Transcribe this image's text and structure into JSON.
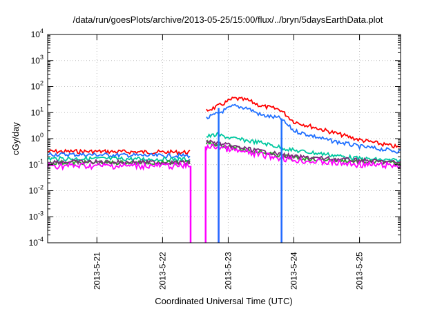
{
  "chart_data": {
    "type": "line",
    "title": "/data/run/goesPlots/archive/2013-05-25/15:00/flux/../bryn/5daysEarthData.plot",
    "xlabel": "Coordinated Universal Time (UTC)",
    "ylabel": "cGy/day",
    "yscale": "log",
    "ylim": [
      0.0001,
      10000
    ],
    "xlim": [
      "2013-05-20 06:00",
      "2013-05-25 15:00"
    ],
    "x_ticks": [
      "2013-5-21",
      "2013-5-22",
      "2013-5-23",
      "2013-5-24",
      "2013-5-25"
    ],
    "y_ticks": [
      {
        "base": "10",
        "exp": "-4"
      },
      {
        "base": "10",
        "exp": "-3"
      },
      {
        "base": "10",
        "exp": "-2"
      },
      {
        "base": "10",
        "exp": "-1"
      },
      {
        "base": "10",
        "exp": "0"
      },
      {
        "base": "10",
        "exp": "1"
      },
      {
        "base": "10",
        "exp": "2"
      },
      {
        "base": "10",
        "exp": "3"
      },
      {
        "base": "10",
        "exp": "4"
      }
    ],
    "grid": true,
    "series": [
      {
        "color": "#ff0000",
        "x": [
          "2013-05-20 06:00",
          "2013-05-21 00:00",
          "2013-05-22 00:00",
          "2013-05-22 10:00",
          "2013-05-22 10:30",
          "2013-05-22 15:30",
          "2013-05-22 16:00",
          "2013-05-22 20:00",
          "2013-05-23 02:00",
          "2013-05-23 07:00",
          "2013-05-23 12:00",
          "2013-05-23 19:00",
          "2013-05-24 00:00",
          "2013-05-24 12:00",
          "2013-05-25 00:00",
          "2013-05-25 15:00"
        ],
        "y": [
          0.32,
          0.32,
          0.3,
          0.3,
          null,
          null,
          12,
          17,
          35,
          30,
          18,
          13,
          4.5,
          2.0,
          0.9,
          0.45
        ]
      },
      {
        "color": "#1f6fff",
        "x": [
          "2013-05-20 06:00",
          "2013-05-21 00:00",
          "2013-05-22 00:00",
          "2013-05-22 10:00",
          "2013-05-22 10:30",
          "2013-05-22 15:30",
          "2013-05-22 16:00",
          "2013-05-22 20:00",
          "2013-05-23 02:00",
          "2013-05-23 07:00",
          "2013-05-23 12:00",
          "2013-05-23 19:00",
          "2013-05-24 00:00",
          "2013-05-24 12:00",
          "2013-05-25 00:00",
          "2013-05-25 15:00"
        ],
        "y": [
          0.25,
          0.24,
          0.22,
          0.22,
          null,
          null,
          6,
          9,
          18,
          15,
          8,
          6,
          2.0,
          0.9,
          0.5,
          0.32
        ]
      },
      {
        "color": "#00c8a0",
        "x": [
          "2013-05-20 06:00",
          "2013-05-21 00:00",
          "2013-05-22 00:00",
          "2013-05-22 10:00",
          "2013-05-22 10:30",
          "2013-05-22 15:30",
          "2013-05-22 16:00",
          "2013-05-22 20:00",
          "2013-05-23 02:00",
          "2013-05-23 12:00",
          "2013-05-24 00:00",
          "2013-05-24 12:00",
          "2013-05-25 00:00",
          "2013-05-25 15:00"
        ],
        "y": [
          0.17,
          0.17,
          0.16,
          0.16,
          null,
          null,
          1.2,
          1.4,
          1.0,
          0.7,
          0.35,
          0.25,
          0.17,
          0.14
        ]
      },
      {
        "color": "#2ca02c",
        "x": [
          "2013-05-20 06:00",
          "2013-05-22 10:00",
          "2013-05-22 10:30",
          "2013-05-22 15:30",
          "2013-05-22 16:00",
          "2013-05-23 02:00",
          "2013-05-24 00:00",
          "2013-05-25 15:00"
        ],
        "y": [
          0.12,
          0.12,
          null,
          null,
          0.7,
          0.45,
          0.18,
          0.11
        ]
      },
      {
        "color": "#7a2a7a",
        "x": [
          "2013-05-20 06:00",
          "2013-05-22 10:00",
          "2013-05-22 10:30",
          "2013-05-22 15:30",
          "2013-05-22 16:00",
          "2013-05-23 02:00",
          "2013-05-24 00:00",
          "2013-05-25 15:00"
        ],
        "y": [
          0.13,
          0.12,
          null,
          null,
          0.8,
          0.5,
          0.2,
          0.12
        ]
      },
      {
        "color": "#ff00ff",
        "x": [
          "2013-05-20 06:00",
          "2013-05-21 00:00",
          "2013-05-22 00:00",
          "2013-05-22 10:00",
          "2013-05-22 10:30",
          "2013-05-22 15:30",
          "2013-05-22 16:00",
          "2013-05-22 20:00",
          "2013-05-23 02:00",
          "2013-05-24 00:00",
          "2013-05-25 00:00",
          "2013-05-25 15:00"
        ],
        "y": [
          0.09,
          0.09,
          0.09,
          0.09,
          null,
          null,
          0.45,
          0.5,
          0.35,
          0.15,
          0.1,
          0.09
        ]
      }
    ]
  }
}
